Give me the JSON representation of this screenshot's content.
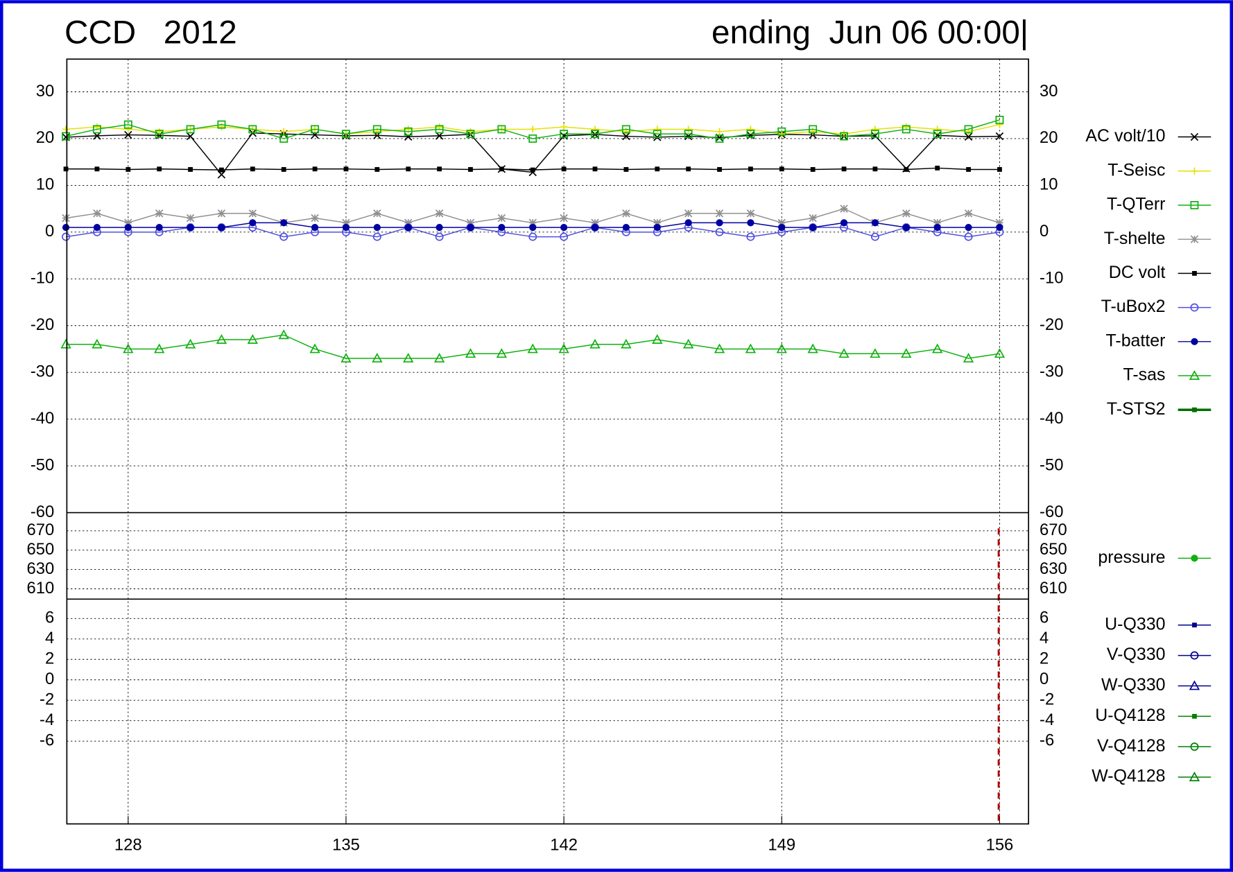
{
  "chart_data": {
    "type": "line",
    "title": "CCD   2012",
    "subtitle": "ending  Jun 06 00:00|",
    "xlim": [
      126.03,
      156.93
    ],
    "xticks": [
      128,
      135,
      142,
      149,
      156
    ],
    "current_time_x": 155.97,
    "grid": true,
    "x": [
      126,
      127,
      128,
      129,
      130,
      131,
      132,
      133,
      134,
      135,
      136,
      137,
      138,
      139,
      140,
      141,
      142,
      143,
      144,
      145,
      146,
      147,
      148,
      149,
      150,
      151,
      152,
      153,
      154,
      155,
      156
    ],
    "panels": [
      {
        "ylim": [
          -60,
          37
        ],
        "yticks": [
          30,
          20,
          10,
          0,
          -10,
          -20,
          -30,
          -40,
          -50,
          -60
        ],
        "series": [
          {
            "name": "AC volt/10",
            "color": "#000000",
            "marker": "x",
            "values": [
              20.3,
              20.6,
              20.8,
              20.7,
              20.5,
              12.3,
              21.2,
              21.0,
              20.8,
              20.6,
              20.7,
              20.4,
              20.6,
              20.9,
              13.5,
              12.8,
              20.6,
              20.9,
              20.5,
              20.3,
              20.5,
              20.2,
              20.7,
              20.9,
              20.8,
              20.5,
              20.6,
              13.6,
              20.7,
              20.4,
              20.5
            ]
          },
          {
            "name": "T-Seisc",
            "color": "#e8e000",
            "marker": "plus",
            "values": [
              22,
              22.5,
              22,
              21.5,
              22,
              22.5,
              22,
              21.5,
              22,
              21,
              21.5,
              22,
              22.5,
              21.5,
              22,
              22,
              22.5,
              22,
              21.5,
              22,
              22,
              21.5,
              22,
              21,
              21.5,
              21,
              22,
              22.5,
              22,
              21.5,
              23
            ]
          },
          {
            "name": "T-QTerr",
            "color": "#10b010",
            "marker": "square-open",
            "values": [
              20.5,
              22,
              23,
              21,
              22,
              23,
              22,
              20,
              22,
              21,
              22,
              21.5,
              22,
              21,
              22,
              20,
              21,
              21,
              22,
              21,
              21,
              20,
              21,
              21.5,
              22,
              20.5,
              21,
              22,
              21,
              22,
              24
            ]
          },
          {
            "name": "T-shelte",
            "color": "#909090",
            "marker": "star",
            "values": [
              3,
              4,
              2,
              4,
              3,
              4,
              4,
              2,
              3,
              2,
              4,
              2,
              4,
              2,
              3,
              2,
              3,
              2,
              4,
              2,
              4,
              4,
              4,
              2,
              3,
              5,
              2,
              4,
              2,
              4,
              2
            ]
          },
          {
            "name": "DC volt",
            "color": "#000000",
            "marker": "square",
            "values": [
              13.5,
              13.5,
              13.4,
              13.5,
              13.4,
              13.3,
              13.5,
              13.4,
              13.5,
              13.5,
              13.4,
              13.5,
              13.5,
              13.4,
              13.5,
              13.3,
              13.5,
              13.5,
              13.4,
              13.5,
              13.5,
              13.4,
              13.5,
              13.5,
              13.4,
              13.5,
              13.5,
              13.4,
              13.7,
              13.4,
              13.4
            ]
          },
          {
            "name": "T-uBox2",
            "color": "#5050e0",
            "marker": "circle-open",
            "values": [
              -1,
              0,
              0,
              0,
              1,
              1,
              1,
              -1,
              0,
              0,
              -1,
              1,
              -1,
              1,
              0,
              -1,
              -1,
              1,
              0,
              0,
              1,
              0,
              -1,
              0,
              1,
              1,
              -1,
              1,
              0,
              -1,
              0
            ]
          },
          {
            "name": "T-batter",
            "color": "#0000a0",
            "marker": "circle",
            "values": [
              1,
              1,
              1,
              1,
              1,
              1,
              2,
              2,
              1,
              1,
              1,
              1,
              1,
              1,
              1,
              1,
              1,
              1,
              1,
              1,
              2,
              2,
              2,
              1,
              1,
              2,
              2,
              1,
              1,
              1,
              1
            ]
          },
          {
            "name": "T-sas",
            "color": "#10b010",
            "marker": "triangle",
            "values": [
              -24,
              -24,
              -25,
              -25,
              -24,
              -23,
              -23,
              -22,
              -25,
              -27,
              -27,
              -27,
              -27,
              -26,
              -26,
              -25,
              -25,
              -24,
              -24,
              -23,
              -24,
              -25,
              -25,
              -25,
              -25,
              -26,
              -26,
              -26,
              -25,
              -27,
              -26
            ]
          },
          {
            "name": "T-STS2",
            "color": "#007000",
            "marker": "square",
            "width": 3
          }
        ]
      },
      {
        "ylim": [
          599.4,
          688.8
        ],
        "yticks": [
          670,
          650,
          630,
          610
        ],
        "series": [
          {
            "name": "pressure",
            "color": "#10b010",
            "marker": "circle"
          }
        ]
      },
      {
        "ylim": [
          -14.1,
          7.9
        ],
        "yticks": [
          6,
          4,
          2,
          0,
          -2,
          -4,
          -6
        ],
        "series": [
          {
            "name": "U-Q330",
            "color": "#000090",
            "marker": "square"
          },
          {
            "name": "V-Q330",
            "color": "#000090",
            "marker": "circle-open"
          },
          {
            "name": "W-Q330",
            "color": "#000090",
            "marker": "triangle"
          },
          {
            "name": "U-Q4128",
            "color": "#008000",
            "marker": "square"
          },
          {
            "name": "V-Q4128",
            "color": "#008000",
            "marker": "circle-open"
          },
          {
            "name": "W-Q4128",
            "color": "#008000",
            "marker": "triangle"
          }
        ]
      }
    ]
  }
}
